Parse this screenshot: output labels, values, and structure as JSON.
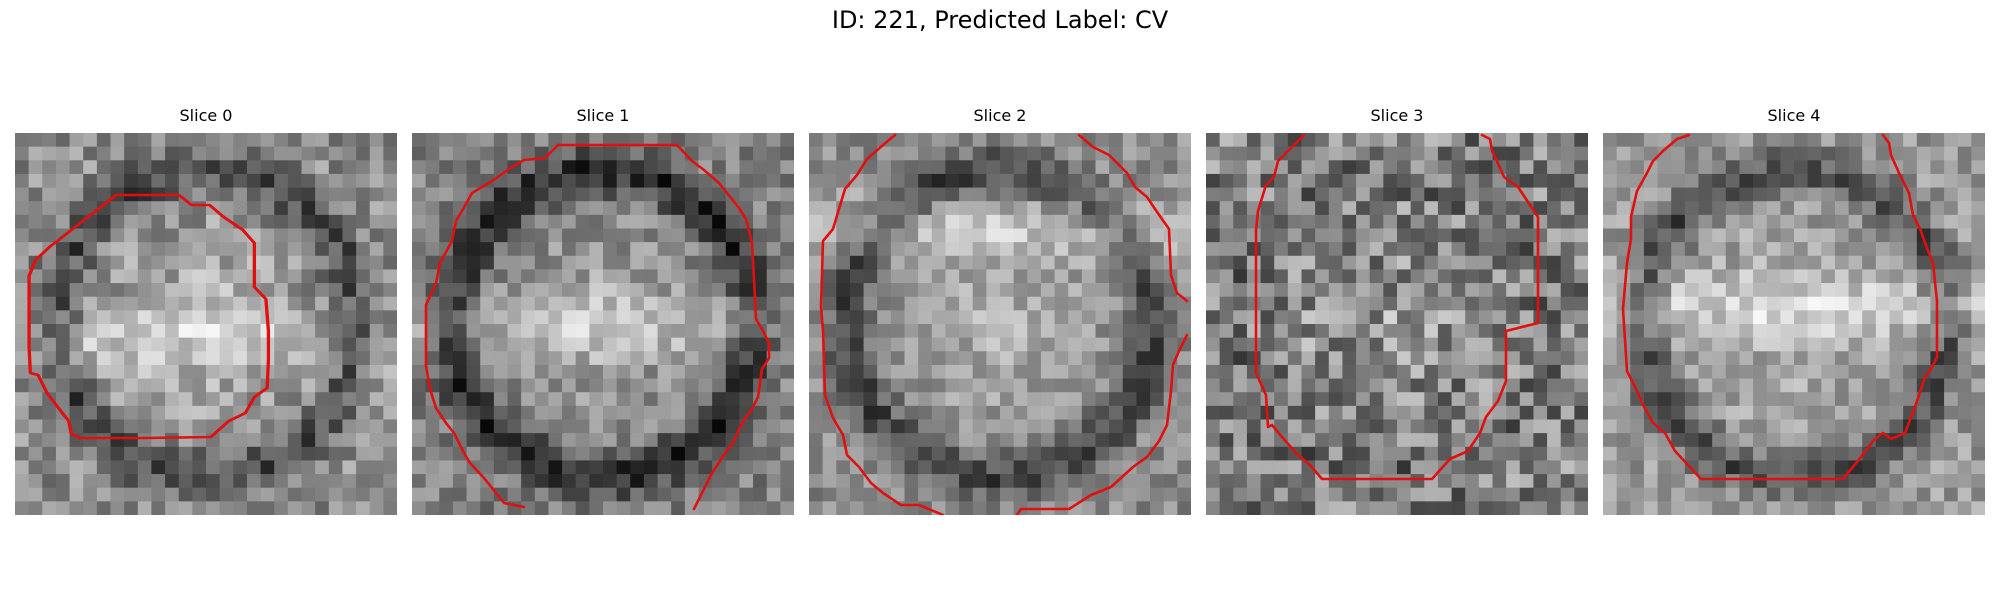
{
  "figure": {
    "title": "ID: 221, Predicted Label: CV"
  },
  "panels": [
    {
      "title": "Slice 0"
    },
    {
      "title": "Slice 1"
    },
    {
      "title": "Slice 2"
    },
    {
      "title": "Slice 3"
    },
    {
      "title": "Slice 4"
    }
  ],
  "colors": {
    "contour": "#e01010",
    "background": "#ffffff"
  }
}
